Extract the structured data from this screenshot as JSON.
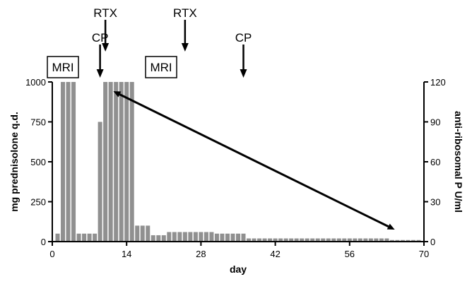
{
  "chart_data": {
    "type": "bar",
    "xlabel": "day",
    "ylabel_left": "mg prednisolone q.d.",
    "ylabel_right": "anti-ribosomal P U/ml",
    "xlim": [
      0,
      70
    ],
    "ylim_left": [
      0,
      1000
    ],
    "ylim_right": [
      0,
      120
    ],
    "x_ticks": [
      "0",
      "14",
      "28",
      "42",
      "56",
      "70"
    ],
    "y_left_ticks": [
      "0",
      "250",
      "500",
      "750",
      "1000"
    ],
    "y_right_ticks": [
      "0",
      "30",
      "60",
      "90",
      "120"
    ],
    "grid": false,
    "series": [
      {
        "axis": "left",
        "bar_width_days": 0.8,
        "points": [
          {
            "x": 1,
            "y": 50
          },
          {
            "x": 2,
            "y": 1000
          },
          {
            "x": 3,
            "y": 1000
          },
          {
            "x": 4,
            "y": 1000
          },
          {
            "x": 5,
            "y": 50
          },
          {
            "x": 6,
            "y": 50
          },
          {
            "x": 7,
            "y": 50
          },
          {
            "x": 8,
            "y": 50
          },
          {
            "x": 9,
            "y": 750
          },
          {
            "x": 10,
            "y": 1000
          },
          {
            "x": 11,
            "y": 1000
          },
          {
            "x": 12,
            "y": 1000
          },
          {
            "x": 13,
            "y": 1000
          },
          {
            "x": 14,
            "y": 1000
          },
          {
            "x": 15,
            "y": 1000
          },
          {
            "x": 16,
            "y": 100
          },
          {
            "x": 17,
            "y": 100
          },
          {
            "x": 18,
            "y": 100
          },
          {
            "x": 19,
            "y": 40
          },
          {
            "x": 20,
            "y": 40
          },
          {
            "x": 21,
            "y": 40
          },
          {
            "x": 22,
            "y": 60
          },
          {
            "x": 23,
            "y": 60
          },
          {
            "x": 24,
            "y": 60
          },
          {
            "x": 25,
            "y": 60
          },
          {
            "x": 26,
            "y": 60
          },
          {
            "x": 27,
            "y": 60
          },
          {
            "x": 28,
            "y": 60
          },
          {
            "x": 29,
            "y": 60
          },
          {
            "x": 30,
            "y": 60
          },
          {
            "x": 31,
            "y": 50
          },
          {
            "x": 32,
            "y": 50
          },
          {
            "x": 33,
            "y": 50
          },
          {
            "x": 34,
            "y": 50
          },
          {
            "x": 35,
            "y": 50
          },
          {
            "x": 36,
            "y": 50
          },
          {
            "x": 37,
            "y": 20
          },
          {
            "x": 38,
            "y": 20
          },
          {
            "x": 39,
            "y": 20
          },
          {
            "x": 40,
            "y": 20
          },
          {
            "x": 41,
            "y": 20
          },
          {
            "x": 42,
            "y": 20
          },
          {
            "x": 43,
            "y": 20
          },
          {
            "x": 44,
            "y": 20
          },
          {
            "x": 45,
            "y": 20
          },
          {
            "x": 46,
            "y": 20
          },
          {
            "x": 47,
            "y": 20
          },
          {
            "x": 48,
            "y": 20
          },
          {
            "x": 49,
            "y": 20
          },
          {
            "x": 50,
            "y": 20
          },
          {
            "x": 51,
            "y": 20
          },
          {
            "x": 52,
            "y": 20
          },
          {
            "x": 53,
            "y": 20
          },
          {
            "x": 54,
            "y": 20
          },
          {
            "x": 55,
            "y": 20
          },
          {
            "x": 56,
            "y": 20
          },
          {
            "x": 57,
            "y": 20
          },
          {
            "x": 58,
            "y": 20
          },
          {
            "x": 59,
            "y": 20
          },
          {
            "x": 60,
            "y": 20
          },
          {
            "x": 61,
            "y": 20
          },
          {
            "x": 62,
            "y": 20
          },
          {
            "x": 63,
            "y": 20
          },
          {
            "x": 64,
            "y": 10
          },
          {
            "x": 65,
            "y": 10
          },
          {
            "x": 66,
            "y": 10
          },
          {
            "x": 67,
            "y": 10
          },
          {
            "x": 68,
            "y": 10
          },
          {
            "x": 69,
            "y": 10
          }
        ]
      },
      {
        "type": "line",
        "axis": "right",
        "points": [
          {
            "x": 11.5,
            "y": 113
          },
          {
            "x": 64.5,
            "y": 9
          }
        ]
      }
    ],
    "annotations": [
      {
        "label": "MRI",
        "x": 2,
        "boxed": true,
        "arrow": false
      },
      {
        "label": "MRI",
        "x": 20.5,
        "boxed": true,
        "arrow": false
      },
      {
        "label": "CP",
        "x": 9,
        "boxed": false,
        "arrow": true
      },
      {
        "label": "RTX",
        "x": 10,
        "boxed": false,
        "arrow": true
      },
      {
        "label": "RTX",
        "x": 25,
        "boxed": false,
        "arrow": true
      },
      {
        "label": "CP",
        "x": 36,
        "boxed": false,
        "arrow": true
      }
    ],
    "colors": {
      "bars": "#909090",
      "line": "#000000",
      "axes": "#000000"
    }
  }
}
